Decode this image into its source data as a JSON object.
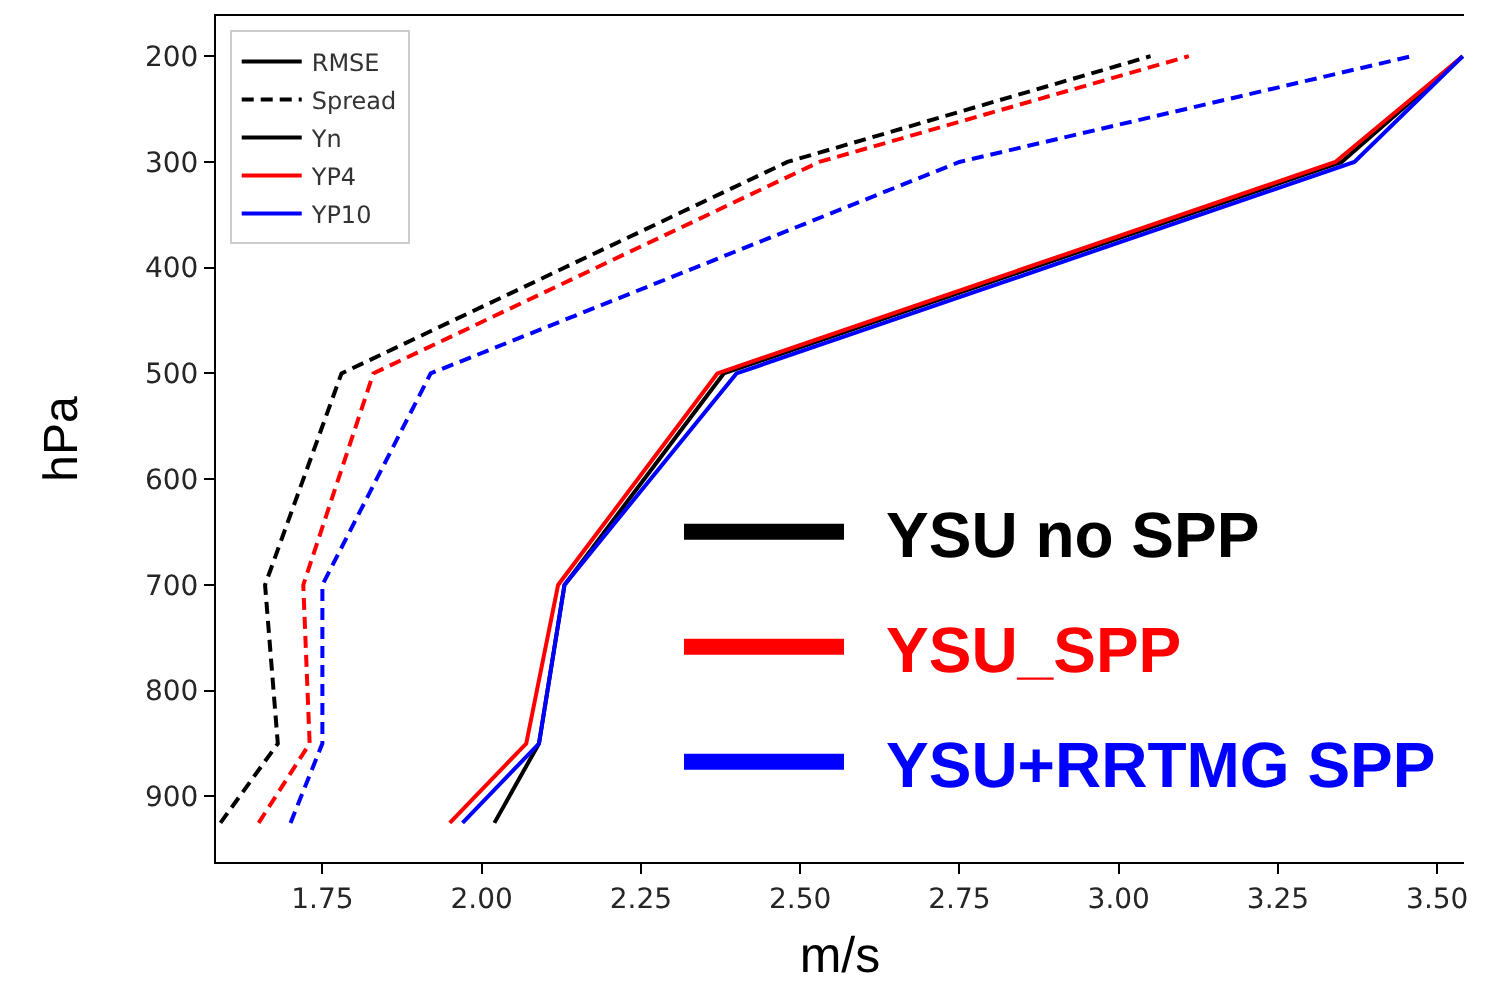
{
  "chart_data": {
    "type": "line",
    "xlabel": "m/s",
    "ylabel": "hPa",
    "xlim": [
      1.583,
      3.542
    ],
    "xticks": [
      1.75,
      {
        "value": 2,
        "label": "2.00"
      },
      2.25,
      {
        "value": 2.5,
        "label": "2.50"
      },
      2.75,
      {
        "value": 3,
        "label": "3.00"
      },
      3.25,
      {
        "value": 3.5,
        "label": "3.50"
      }
    ],
    "ylim": [
      962,
      162
    ],
    "yticks": [
      200,
      300,
      400,
      500,
      600,
      700,
      800,
      900
    ],
    "legend": "top left",
    "series": [
      {
        "name": "RMSE",
        "color": "#000000",
        "line_style": "solid"
      },
      {
        "name": "Spread",
        "color": "#000000",
        "line_style": "dashed"
      },
      {
        "name": "Yn",
        "color": "#000000",
        "line_style": "solid"
      },
      {
        "name": "YP4",
        "color": "#ff0000",
        "line_style": "solid"
      },
      {
        "name": "YP10",
        "color": "#0000ff",
        "line_style": "solid"
      },
      {
        "name": "YSU no SPP",
        "color": "#000000",
        "line_style": "solid",
        "x": [
          2.02,
          2.09,
          2.13,
          2.38,
          3.35,
          3.54
        ],
        "values": [
          925,
          850,
          700,
          500,
          300,
          200
        ]
      },
      {
        "name": "YSU_SPP",
        "color": "#ff0000",
        "line_style": "solid",
        "x": [
          1.95,
          2.07,
          2.12,
          2.37,
          3.34,
          3.54
        ],
        "values": [
          925,
          850,
          700,
          500,
          300,
          200
        ]
      },
      {
        "name": "YSU+RRTMG SPP",
        "color": "#0000ff",
        "line_style": "solid",
        "x": [
          1.97,
          2.09,
          2.13,
          2.4,
          3.37,
          3.54
        ],
        "values": [
          925,
          850,
          700,
          500,
          300,
          200
        ]
      },
      {
        "color": "#000000",
        "line_style": "dashed",
        "x": [
          1.59,
          1.68,
          1.66,
          1.78,
          2.48,
          3.05
        ],
        "values": [
          925,
          850,
          700,
          500,
          300,
          200
        ]
      },
      {
        "color": "#ff0000",
        "line_style": "dashed",
        "x": [
          1.65,
          1.73,
          1.72,
          1.83,
          2.53,
          3.11
        ],
        "values": [
          925,
          850,
          700,
          500,
          300,
          200
        ]
      },
      {
        "color": "#0000ff",
        "line_style": "dashed",
        "x": [
          1.7,
          1.75,
          1.75,
          1.92,
          2.75,
          3.46
        ],
        "values": [
          925,
          850,
          700,
          500,
          300,
          200
        ]
      }
    ]
  }
}
